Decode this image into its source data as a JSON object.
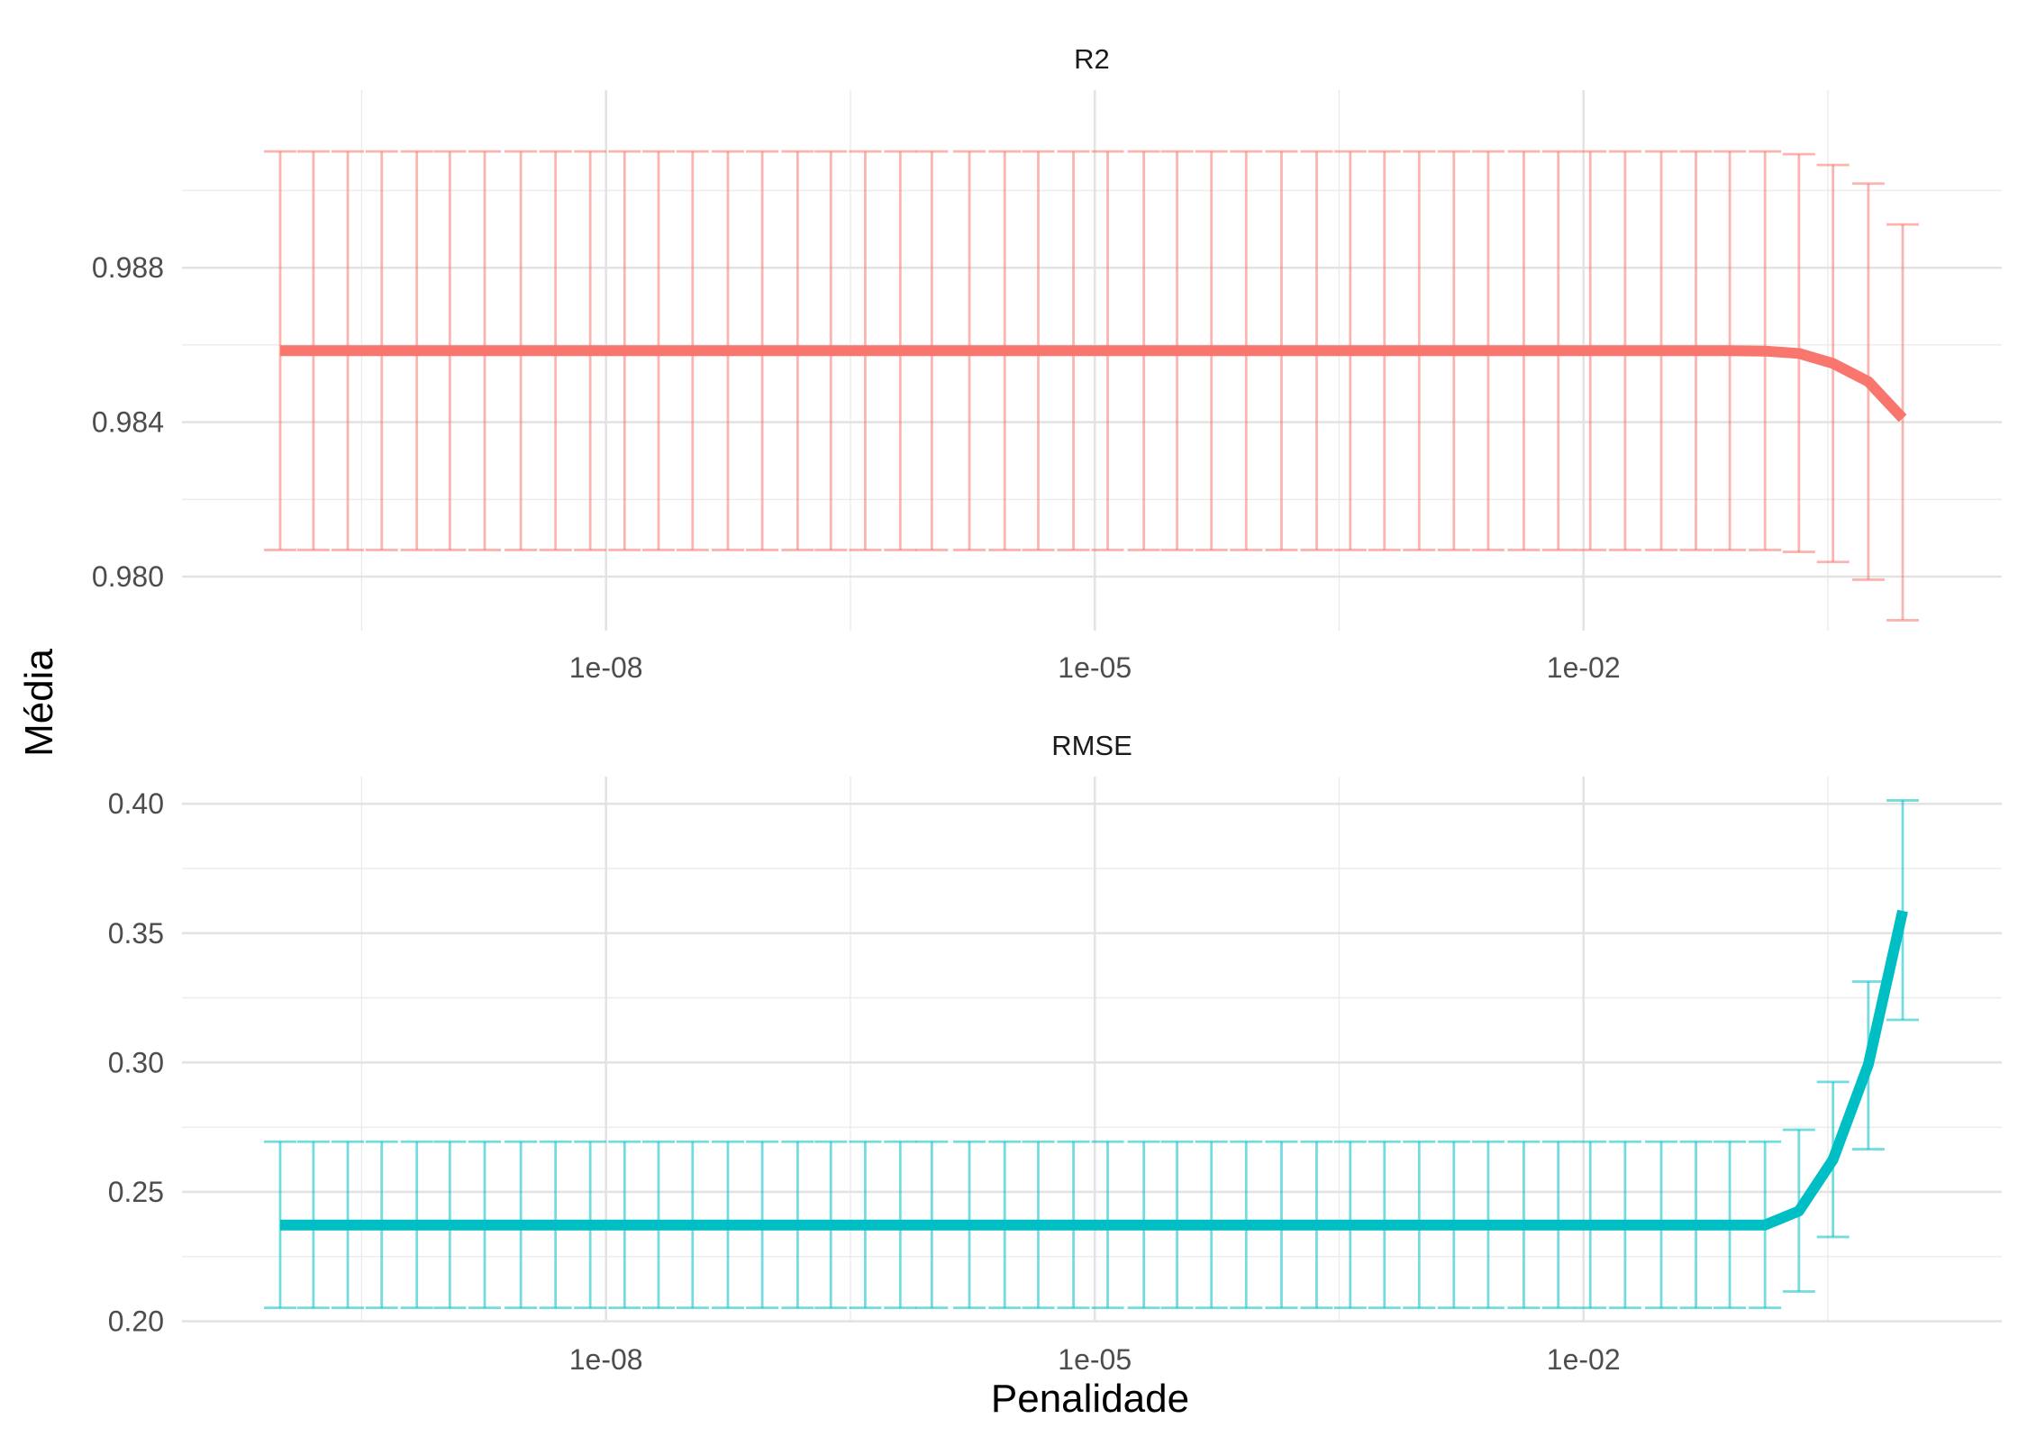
{
  "chart_data": {
    "type": "line",
    "xlabel": "Penalidade",
    "ylabel": "Média",
    "x_scale": "log10",
    "x_ticks": [
      "1e-08",
      "1e-05",
      "1e-02"
    ],
    "x_tick_values": [
      1e-08,
      1e-05,
      0.01
    ],
    "xlim": [
      1e-10,
      1
    ],
    "x": [
      1e-10,
      1.6e-10,
      2.6e-10,
      4.2e-10,
      6.9e-10,
      1.1e-09,
      1.8e-09,
      3e-09,
      4.9e-09,
      8e-09,
      1.3e-08,
      2.1e-08,
      3.4e-08,
      5.6e-08,
      9.1e-08,
      1.5e-07,
      2.4e-07,
      3.9e-07,
      6.4e-07,
      1e-06,
      1.7e-06,
      2.8e-06,
      4.5e-06,
      7.4e-06,
      1.2e-05,
      2e-05,
      3.2e-05,
      5.2e-05,
      8.5e-05,
      0.00014,
      0.00023,
      0.00037,
      0.0006,
      0.00098,
      0.0016,
      0.0026,
      0.0043,
      0.007,
      0.011,
      0.018,
      0.03,
      0.049,
      0.079,
      0.13,
      0.21,
      0.34,
      0.56,
      0.91
    ],
    "panels": [
      {
        "strip": "R2",
        "color": "#F8766D",
        "errorbar_color": "#F8766D",
        "y_ticks": [
          "0.980",
          "0.984",
          "0.988"
        ],
        "y_tick_values": [
          0.98,
          0.984,
          0.988
        ],
        "ylim": [
          0.9786,
          0.9926
        ],
        "mean": [
          0.98585,
          0.98585,
          0.98585,
          0.98585,
          0.98585,
          0.98585,
          0.98585,
          0.98585,
          0.98585,
          0.98585,
          0.98585,
          0.98585,
          0.98585,
          0.98585,
          0.98585,
          0.98585,
          0.98585,
          0.98585,
          0.98585,
          0.98585,
          0.98585,
          0.98585,
          0.98585,
          0.98585,
          0.98585,
          0.98585,
          0.98585,
          0.98585,
          0.98585,
          0.98585,
          0.98585,
          0.98585,
          0.98585,
          0.98585,
          0.98585,
          0.98585,
          0.98585,
          0.98585,
          0.98585,
          0.98585,
          0.98585,
          0.98585,
          0.98585,
          0.98584,
          0.98578,
          0.98552,
          0.98505,
          0.9841
        ],
        "lower": [
          0.98069,
          0.98069,
          0.98069,
          0.98069,
          0.98069,
          0.98069,
          0.98069,
          0.98069,
          0.98069,
          0.98069,
          0.98069,
          0.98069,
          0.98069,
          0.98069,
          0.98069,
          0.98069,
          0.98069,
          0.98069,
          0.98069,
          0.98069,
          0.98069,
          0.98069,
          0.98069,
          0.98069,
          0.98069,
          0.98069,
          0.98069,
          0.98069,
          0.98069,
          0.98069,
          0.98069,
          0.98069,
          0.98069,
          0.98069,
          0.98069,
          0.98069,
          0.98069,
          0.98069,
          0.98069,
          0.98069,
          0.98069,
          0.98069,
          0.98069,
          0.98069,
          0.98064,
          0.98038,
          0.97992,
          0.97887
        ],
        "upper": [
          0.99101,
          0.99101,
          0.99101,
          0.99101,
          0.99101,
          0.99101,
          0.99101,
          0.99101,
          0.99101,
          0.99101,
          0.99101,
          0.99101,
          0.99101,
          0.99101,
          0.99101,
          0.99101,
          0.99101,
          0.99101,
          0.99101,
          0.99101,
          0.99101,
          0.99101,
          0.99101,
          0.99101,
          0.99101,
          0.99101,
          0.99101,
          0.99101,
          0.99101,
          0.99101,
          0.99101,
          0.99101,
          0.99101,
          0.99101,
          0.99101,
          0.99101,
          0.99101,
          0.99101,
          0.99101,
          0.99101,
          0.99101,
          0.99101,
          0.99101,
          0.99101,
          0.99094,
          0.99066,
          0.99018,
          0.98912
        ]
      },
      {
        "strip": "RMSE",
        "color": "#00BFC4",
        "errorbar_color": "#00BFC4",
        "y_ticks": [
          "0.20",
          "0.25",
          "0.30",
          "0.35",
          "0.40"
        ],
        "y_tick_values": [
          0.2,
          0.25,
          0.3,
          0.35,
          0.4
        ],
        "ylim": [
          0.1995,
          0.4105
        ],
        "mean": [
          0.2372,
          0.2372,
          0.2372,
          0.2372,
          0.2372,
          0.2372,
          0.2372,
          0.2372,
          0.2372,
          0.2372,
          0.2372,
          0.2372,
          0.2372,
          0.2372,
          0.2372,
          0.2372,
          0.2372,
          0.2372,
          0.2372,
          0.2372,
          0.2372,
          0.2372,
          0.2372,
          0.2372,
          0.2372,
          0.2372,
          0.2372,
          0.2372,
          0.2372,
          0.2372,
          0.2372,
          0.2372,
          0.2372,
          0.2372,
          0.2372,
          0.2372,
          0.2372,
          0.2372,
          0.2372,
          0.2372,
          0.2372,
          0.2372,
          0.2372,
          0.2372,
          0.2426,
          0.2625,
          0.2993,
          0.3586
        ],
        "lower": [
          0.2052,
          0.2052,
          0.2052,
          0.2052,
          0.2052,
          0.2052,
          0.2052,
          0.2052,
          0.2052,
          0.2052,
          0.2052,
          0.2052,
          0.2052,
          0.2052,
          0.2052,
          0.2052,
          0.2052,
          0.2052,
          0.2052,
          0.2052,
          0.2052,
          0.2052,
          0.2052,
          0.2052,
          0.2052,
          0.2052,
          0.2052,
          0.2052,
          0.2052,
          0.2052,
          0.2052,
          0.2052,
          0.2052,
          0.2052,
          0.2052,
          0.2052,
          0.2052,
          0.2052,
          0.2052,
          0.2052,
          0.2052,
          0.2052,
          0.2052,
          0.2052,
          0.2115,
          0.2326,
          0.2665,
          0.3165
        ],
        "upper": [
          0.2694,
          0.2694,
          0.2694,
          0.2694,
          0.2694,
          0.2694,
          0.2694,
          0.2694,
          0.2694,
          0.2694,
          0.2694,
          0.2694,
          0.2694,
          0.2694,
          0.2694,
          0.2694,
          0.2694,
          0.2694,
          0.2694,
          0.2694,
          0.2694,
          0.2694,
          0.2694,
          0.2694,
          0.2694,
          0.2694,
          0.2694,
          0.2694,
          0.2694,
          0.2694,
          0.2694,
          0.2694,
          0.2694,
          0.2694,
          0.2694,
          0.2694,
          0.2694,
          0.2694,
          0.2694,
          0.2694,
          0.2694,
          0.2694,
          0.2694,
          0.2694,
          0.274,
          0.2925,
          0.3313,
          0.4013
        ]
      }
    ],
    "grid": true,
    "legend": "none"
  }
}
